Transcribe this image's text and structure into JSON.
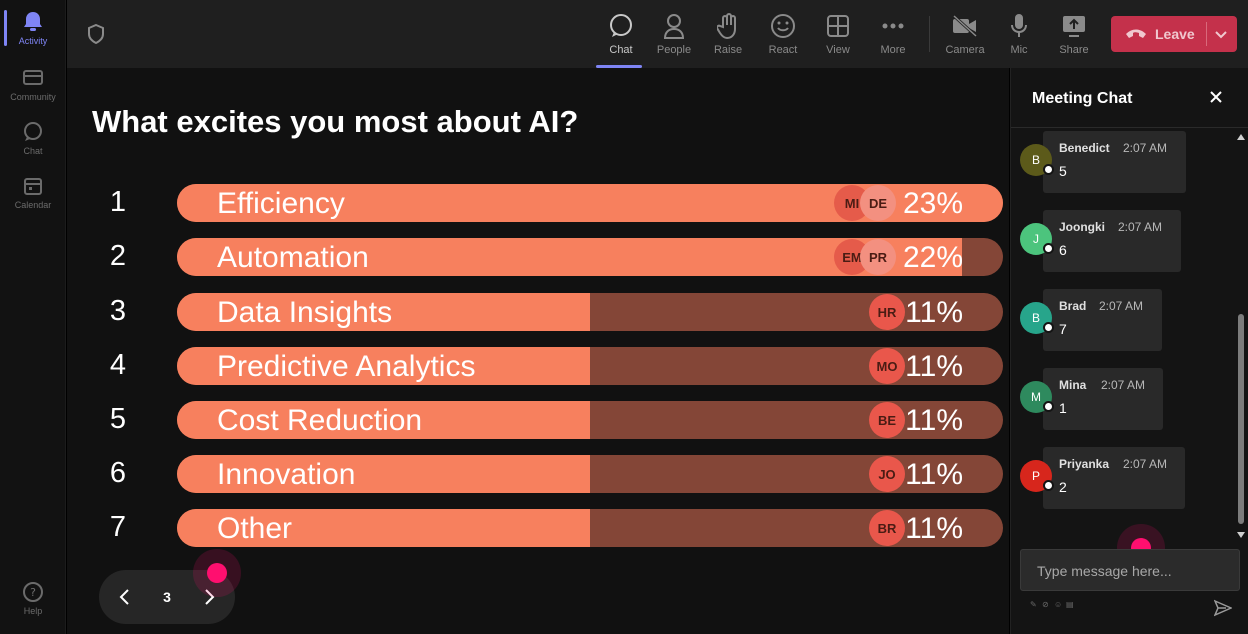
{
  "rail": {
    "items": [
      {
        "label": "Activity",
        "icon": "bell-icon",
        "active": true
      },
      {
        "label": "Community",
        "icon": "community-icon"
      },
      {
        "label": "Chat",
        "icon": "chat-icon"
      },
      {
        "label": "Calendar",
        "icon": "calendar-icon"
      }
    ],
    "help": "Help"
  },
  "toolbar": {
    "chat": "Chat",
    "people": "People",
    "raise": "Raise",
    "react": "React",
    "view": "View",
    "more": "More",
    "camera": "Camera",
    "mic": "Mic",
    "share": "Share",
    "leave": "Leave"
  },
  "poll": {
    "question": "What excites you most about AI?",
    "options": [
      {
        "num": "1",
        "label": "Efficiency",
        "percent": "23%",
        "fill": 1.0,
        "avatars": [
          "MI",
          "DE"
        ]
      },
      {
        "num": "2",
        "label": "Automation",
        "percent": "22%",
        "fill": 0.95,
        "avatars": [
          "EM",
          "PR"
        ]
      },
      {
        "num": "3",
        "label": "Data Insights",
        "percent": "11%",
        "fill": 0.5,
        "avatars": [
          "HR"
        ]
      },
      {
        "num": "4",
        "label": "Predictive Analytics",
        "percent": "11%",
        "fill": 0.5,
        "avatars": [
          "MO"
        ]
      },
      {
        "num": "5",
        "label": "Cost Reduction",
        "percent": "11%",
        "fill": 0.5,
        "avatars": [
          "BE"
        ]
      },
      {
        "num": "6",
        "label": "Innovation",
        "percent": "11%",
        "fill": 0.5,
        "avatars": [
          "JO"
        ]
      },
      {
        "num": "7",
        "label": "Other",
        "percent": "11%",
        "fill": 0.5,
        "avatars": [
          "BR"
        ]
      }
    ]
  },
  "pager": {
    "page": "3"
  },
  "chat": {
    "title": "Meeting Chat",
    "messages": [
      {
        "initial": "B",
        "name": "Benedict",
        "time": "2:07 AM",
        "text": "5",
        "color": "#5c5a1a"
      },
      {
        "initial": "J",
        "name": "Joongki",
        "time": "2:07 AM",
        "text": "6",
        "color": "#4cc47d"
      },
      {
        "initial": "B",
        "name": "Brad",
        "time": "2:07 AM",
        "text": "7",
        "color": "#27a58b"
      },
      {
        "initial": "M",
        "name": "Mina",
        "time": "2:07 AM",
        "text": "1",
        "color": "#2e8a5e"
      },
      {
        "initial": "P",
        "name": "Priyanka",
        "time": "2:07 AM",
        "text": "2",
        "color": "#d7261c"
      }
    ],
    "placeholder": "Type message here..."
  },
  "colors": {
    "bar_fill": "#f7805e",
    "bar_track": "#844637",
    "leave": "#c4314b",
    "accent": "#7f85f5",
    "cursor": "#ff0f6f"
  }
}
